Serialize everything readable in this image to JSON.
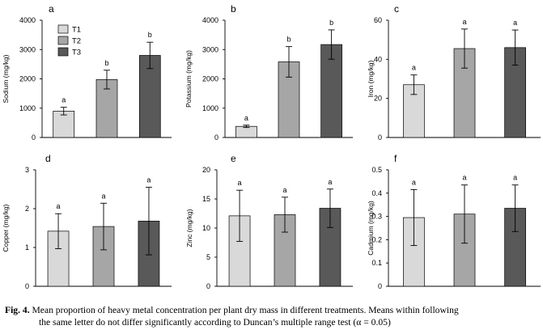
{
  "chart_data": [
    {
      "panel": "a",
      "type": "bar",
      "ylabel": "Sodium (mg/kg)",
      "ylim": [
        0,
        4000
      ],
      "yticks": [
        0,
        1000,
        2000,
        3000,
        4000
      ],
      "categories": [
        "T1",
        "T2",
        "T3"
      ],
      "values": [
        900,
        1975,
        2800
      ],
      "errors": [
        130,
        320,
        450
      ],
      "labels": [
        "a",
        "b",
        "b"
      ]
    },
    {
      "panel": "b",
      "type": "bar",
      "ylabel": "Potassium (mg/kg)",
      "ylim": [
        0,
        4000
      ],
      "yticks": [
        0,
        1000,
        2000,
        3000,
        4000
      ],
      "categories": [
        "T1",
        "T2",
        "T3"
      ],
      "values": [
        380,
        2580,
        3170
      ],
      "errors": [
        40,
        520,
        500
      ],
      "labels": [
        "a",
        "b",
        "b"
      ]
    },
    {
      "panel": "c",
      "type": "bar",
      "ylabel": "Iron (mg/kg)",
      "ylim": [
        0,
        60
      ],
      "yticks": [
        0,
        20,
        40,
        60
      ],
      "categories": [
        "T1",
        "T2",
        "T3"
      ],
      "values": [
        27,
        45.5,
        46
      ],
      "errors": [
        5,
        10,
        9
      ],
      "labels": [
        "a",
        "a",
        "a"
      ]
    },
    {
      "panel": "d",
      "type": "bar",
      "ylabel": "Copper (mg/kg)",
      "ylim": [
        0,
        3
      ],
      "yticks": [
        0,
        1,
        2,
        3
      ],
      "categories": [
        "T1",
        "T2",
        "T3"
      ],
      "values": [
        1.42,
        1.54,
        1.68
      ],
      "errors": [
        0.45,
        0.6,
        0.87
      ],
      "labels": [
        "a",
        "a",
        "a"
      ]
    },
    {
      "panel": "e",
      "type": "bar",
      "ylabel": "Zinc (mg/kg)",
      "ylim": [
        0,
        20
      ],
      "yticks": [
        0,
        5,
        10,
        15,
        20
      ],
      "categories": [
        "T1",
        "T2",
        "T3"
      ],
      "values": [
        12.1,
        12.3,
        13.4
      ],
      "errors": [
        4.4,
        3.0,
        3.3
      ],
      "labels": [
        "a",
        "a",
        "a"
      ]
    },
    {
      "panel": "f",
      "type": "bar",
      "ylabel": "Cadmium (mg/kg)",
      "ylim": [
        0,
        0.5
      ],
      "yticks": [
        "0",
        "0.1",
        "0.2",
        "0.3",
        "0.4",
        "0.5"
      ],
      "categories": [
        "T1",
        "T2",
        "T3"
      ],
      "values": [
        0.295,
        0.31,
        0.335
      ],
      "errors": [
        0.12,
        0.125,
        0.1
      ],
      "labels": [
        "a",
        "a",
        "a"
      ]
    }
  ],
  "legend": [
    "T1",
    "T2",
    "T3"
  ],
  "colors": {
    "T1": "#d9d9d9",
    "T2": "#a6a6a6",
    "T3": "#595959",
    "axis": "#000000"
  },
  "caption": {
    "label": "Fig. 4.",
    "line1": "Mean proportion of heavy metal concentration per plant dry mass in different treatments. Means within following",
    "line2": "the same letter do not differ significantly according to Duncan’s multiple range test (α = 0.05)"
  }
}
